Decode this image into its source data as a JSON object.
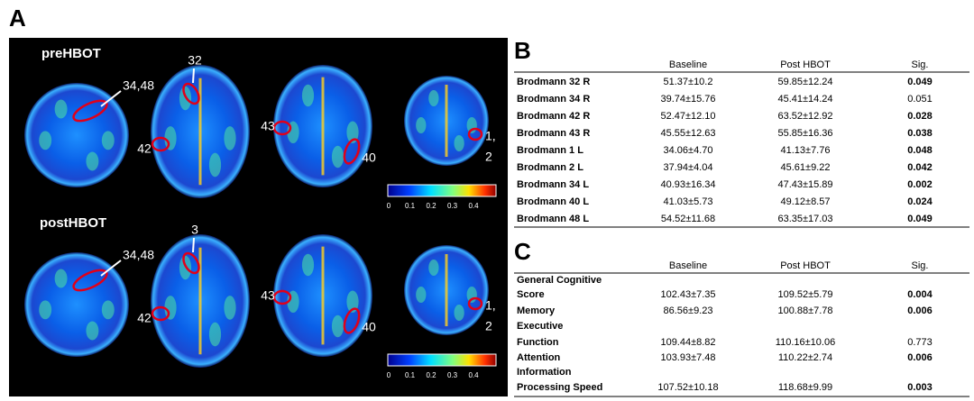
{
  "panel_a": {
    "label": "A",
    "rows": [
      {
        "title": "preHBOT",
        "regions": [
          "34,48",
          "32",
          "42",
          "43",
          "40",
          "1,",
          "2"
        ]
      },
      {
        "title": "postHBOT",
        "regions": [
          "34,48",
          "3",
          "42",
          "43",
          "40",
          "1,",
          "2"
        ]
      }
    ],
    "colorbar_ticks": [
      "0",
      "0.1",
      "0.2",
      "0.3",
      "0.4"
    ]
  },
  "panel_b": {
    "label": "B",
    "headers": [
      "Baseline",
      "Post HBOT",
      "Sig."
    ],
    "rows": [
      {
        "label": [
          "Brodmann 32 R"
        ],
        "baseline": "51.37±10.2",
        "post": "59.85±12.24",
        "sig": "0.049",
        "sig_bold": true
      },
      {
        "label": [
          "Brodmann 34 R"
        ],
        "baseline": "39.74±15.76",
        "post": "45.41±14.24",
        "sig": "0.051",
        "sig_bold": false
      },
      {
        "label": [
          "Brodmann 42 R"
        ],
        "baseline": "52.47±12.10",
        "post": "63.52±12.92",
        "sig": "0.028",
        "sig_bold": true
      },
      {
        "label": [
          "Brodmann 43 R"
        ],
        "baseline": "45.55±12.63",
        "post": "55.85±16.36",
        "sig": "0.038",
        "sig_bold": true
      },
      {
        "label": [
          "Brodmann 1 L"
        ],
        "baseline": "34.06±4.70",
        "post": "41.13±7.76",
        "sig": "0.048",
        "sig_bold": true
      },
      {
        "label": [
          "Brodmann 2 L"
        ],
        "baseline": "37.94±4.04",
        "post": "45.61±9.22",
        "sig": "0.042",
        "sig_bold": true
      },
      {
        "label": [
          "Brodmann 34 L"
        ],
        "baseline": "40.93±16.34",
        "post": "47.43±15.89",
        "sig": "0.002",
        "sig_bold": true
      },
      {
        "label": [
          "Brodmann 40 L"
        ],
        "baseline": "41.03±5.73",
        "post": "49.12±8.57",
        "sig": "0.024",
        "sig_bold": true
      },
      {
        "label": [
          "Brodmann 48 L"
        ],
        "baseline": "54.52±11.68",
        "post": "63.35±17.03",
        "sig": "0.049",
        "sig_bold": true
      }
    ]
  },
  "panel_c": {
    "label": "C",
    "headers": [
      "Baseline",
      "Post HBOT",
      "Sig."
    ],
    "rows": [
      {
        "label": [
          "General Cognitive",
          "Score"
        ],
        "baseline": "102.43±7.35",
        "post": "109.52±5.79",
        "sig": "0.004",
        "sig_bold": true
      },
      {
        "label": [
          "Memory"
        ],
        "baseline": "86.56±9.23",
        "post": "100.88±7.78",
        "sig": "0.006",
        "sig_bold": true
      },
      {
        "label": [
          "Executive",
          "Function"
        ],
        "baseline": "109.44±8.82",
        "post": "110.16±10.06",
        "sig": "0.773",
        "sig_bold": false
      },
      {
        "label": [
          "Attention"
        ],
        "baseline": "103.93±7.48",
        "post": "110.22±2.74",
        "sig": "0.006",
        "sig_bold": true
      },
      {
        "label": [
          "Information",
          "Processing Speed"
        ],
        "baseline": "107.52±10.18",
        "post": "118.68±9.99",
        "sig": "0.003",
        "sig_bold": true
      }
    ]
  }
}
